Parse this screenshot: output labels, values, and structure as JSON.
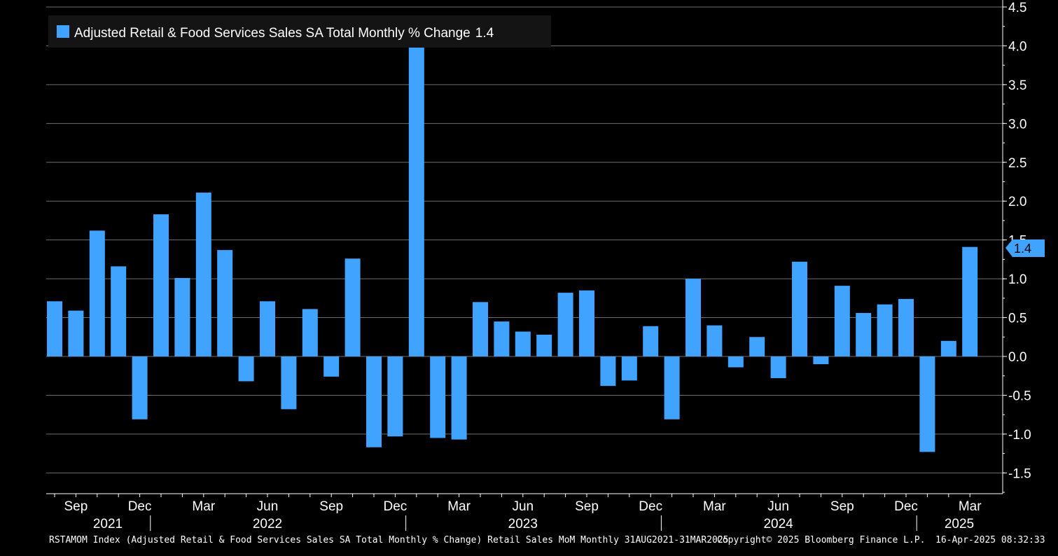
{
  "chart_data": {
    "type": "bar",
    "legend": {
      "label": "Adjusted Retail & Food Services Sales SA Total Monthly % Change",
      "last_value": "1.4",
      "position": "top-left"
    },
    "last_value_label": "1.4",
    "color": "#3fa3ff",
    "ylim": [
      -1.75,
      4.5
    ],
    "y_ticks": [
      "4.5",
      "4.0",
      "3.5",
      "3.0",
      "2.5",
      "2.0",
      "1.5",
      "1.0",
      "0.5",
      "0.0",
      "-0.5",
      "-1.0",
      "-1.5"
    ],
    "y_axis_side": "right",
    "grid": true,
    "categories": [
      "Aug 2021",
      "Sep 2021",
      "Oct 2021",
      "Nov 2021",
      "Dec 2021",
      "Jan 2022",
      "Feb 2022",
      "Mar 2022",
      "Apr 2022",
      "May 2022",
      "Jun 2022",
      "Jul 2022",
      "Aug 2022",
      "Sep 2022",
      "Oct 2022",
      "Nov 2022",
      "Dec 2022",
      "Jan 2023",
      "Feb 2023",
      "Mar 2023",
      "Apr 2023",
      "May 2023",
      "Jun 2023",
      "Jul 2023",
      "Aug 2023",
      "Sep 2023",
      "Oct 2023",
      "Nov 2023",
      "Dec 2023",
      "Jan 2024",
      "Feb 2024",
      "Mar 2024",
      "Apr 2024",
      "May 2024",
      "Jun 2024",
      "Jul 2024",
      "Aug 2024",
      "Sep 2024",
      "Oct 2024",
      "Nov 2024",
      "Dec 2024",
      "Jan 2025",
      "Feb 2025",
      "Mar 2025"
    ],
    "values": [
      0.71,
      0.59,
      1.62,
      1.16,
      -0.81,
      1.83,
      1.01,
      2.11,
      1.37,
      -0.32,
      0.71,
      -0.68,
      0.61,
      -0.26,
      1.26,
      -1.17,
      -1.03,
      4.08,
      -1.05,
      -1.07,
      0.7,
      0.45,
      0.32,
      0.28,
      0.82,
      0.85,
      -0.38,
      -0.31,
      0.39,
      -0.81,
      1.0,
      0.4,
      -0.14,
      0.25,
      -0.28,
      1.22,
      -0.1,
      0.91,
      0.56,
      0.67,
      0.74,
      -1.23,
      0.2,
      1.41
    ],
    "x_month_labels": [
      {
        "label": "Sep",
        "index": 1
      },
      {
        "label": "Dec",
        "index": 4
      },
      {
        "label": "Mar",
        "index": 7
      },
      {
        "label": "Jun",
        "index": 10
      },
      {
        "label": "Sep",
        "index": 13
      },
      {
        "label": "Dec",
        "index": 16
      },
      {
        "label": "Mar",
        "index": 19
      },
      {
        "label": "Jun",
        "index": 22
      },
      {
        "label": "Sep",
        "index": 25
      },
      {
        "label": "Dec",
        "index": 28
      },
      {
        "label": "Mar",
        "index": 31
      },
      {
        "label": "Jun",
        "index": 34
      },
      {
        "label": "Sep",
        "index": 37
      },
      {
        "label": "Dec",
        "index": 40
      },
      {
        "label": "Mar",
        "index": 43
      }
    ],
    "x_year_labels": [
      {
        "label": "2021",
        "index": 2.5
      },
      {
        "label": "2022",
        "index": 10
      },
      {
        "label": "2023",
        "index": 22
      },
      {
        "label": "2024",
        "index": 34
      },
      {
        "label": "2025",
        "index": 42.5
      }
    ],
    "year_separators": [
      4.5,
      16.5,
      28.5,
      40.5
    ]
  },
  "footer": {
    "description": "RSTAMOM Index (Adjusted Retail & Food Services Sales SA Total Monthly % Change) Retail Sales MoM  Monthly 31AUG2021-31MAR2025",
    "copyright": "Copyright© 2025 Bloomberg Finance L.P.",
    "timestamp": "16-Apr-2025 08:32:33"
  }
}
